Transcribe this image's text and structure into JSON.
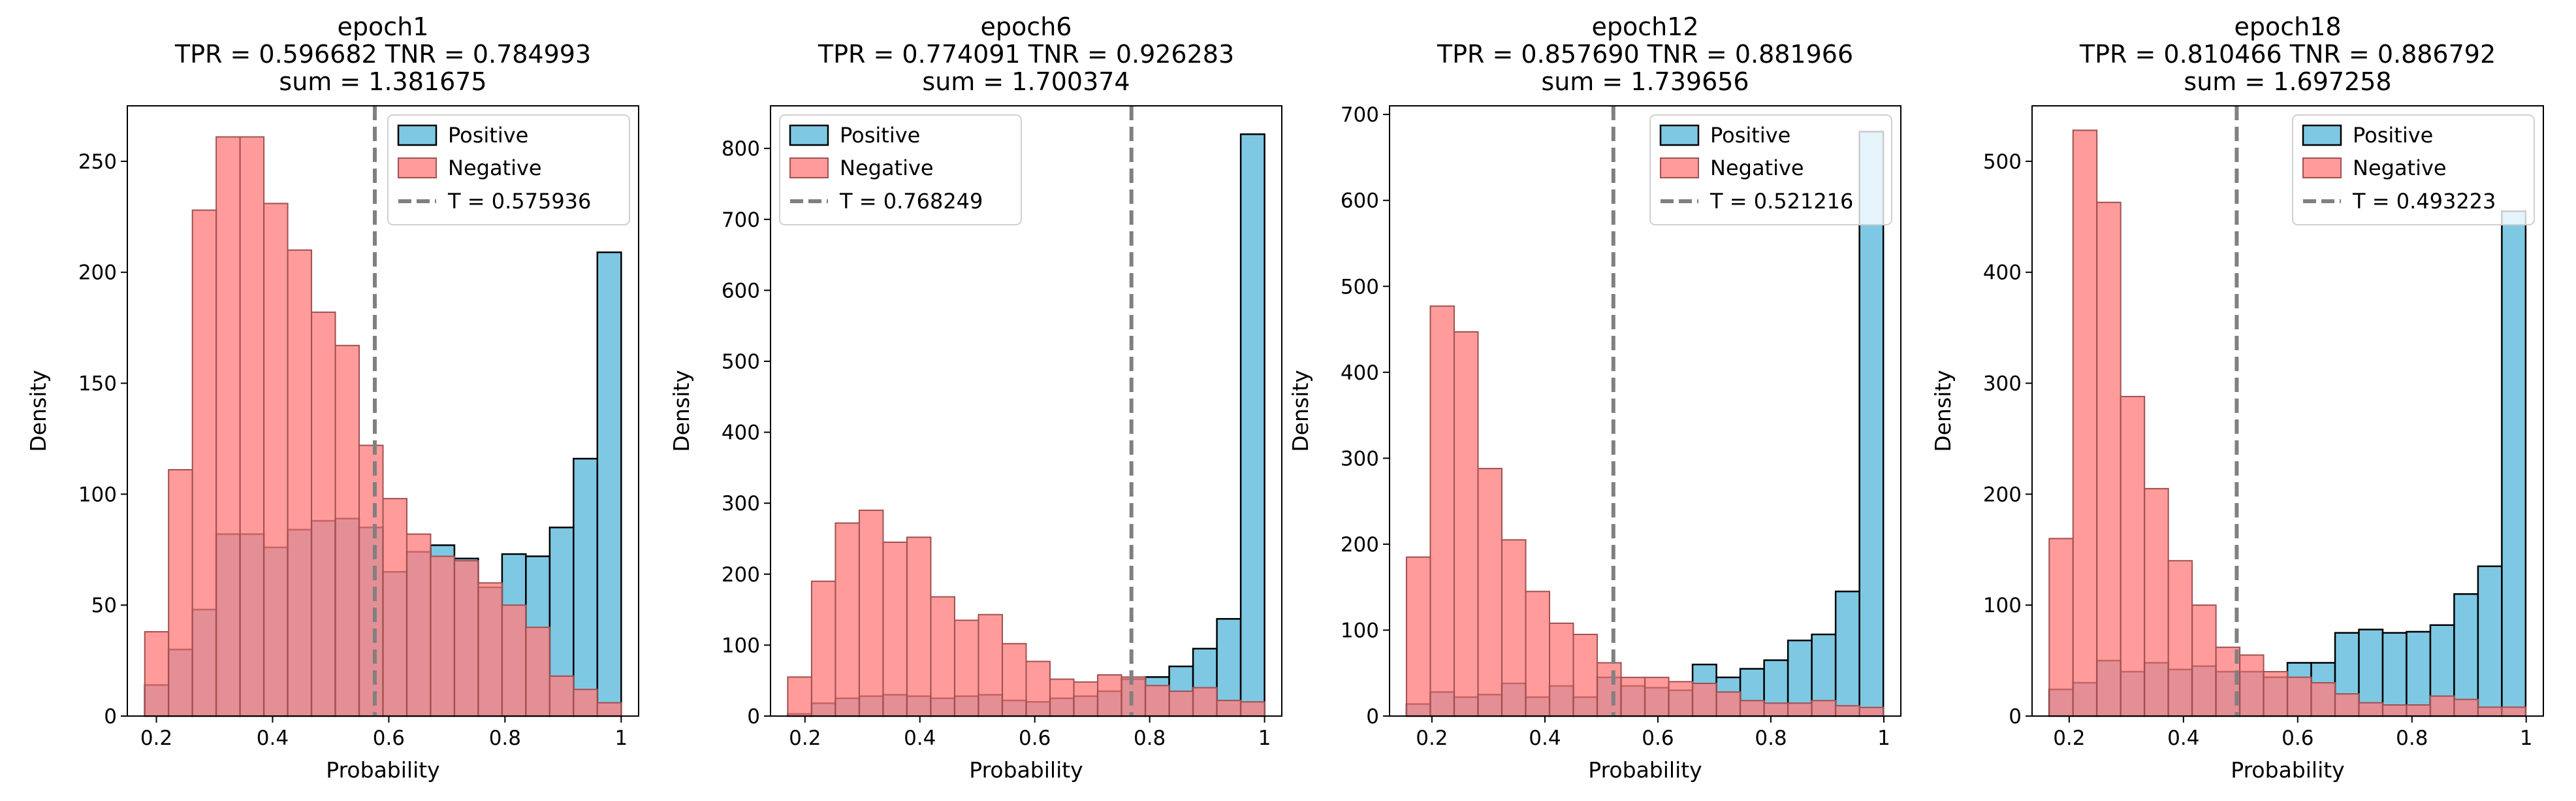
{
  "chart_data": [
    {
      "type": "histogram",
      "title": "epoch1",
      "subtitle_lines": [
        "TPR = 0.596682 TNR = 0.784993",
        "sum = 1.381675"
      ],
      "xlabel": "Probability",
      "ylabel": "Density",
      "xlim": [
        0.15,
        1.03
      ],
      "ylim": [
        0,
        275
      ],
      "xticks": [
        0.2,
        0.4,
        0.6,
        0.8,
        1.0
      ],
      "yticks": [
        0,
        50,
        100,
        150,
        200,
        250
      ],
      "legend_position": "top-right",
      "threshold": 0.575936,
      "legend": {
        "positive": "Positive",
        "negative": "Negative",
        "threshold": "T = 0.575936"
      },
      "bin_start": 0.18,
      "bin_width": 0.041,
      "positive": [
        14,
        30,
        48,
        82,
        82,
        76,
        84,
        88,
        89,
        85,
        65,
        74,
        77,
        71,
        58,
        73,
        72,
        85,
        116,
        209
      ],
      "negative": [
        38,
        111,
        228,
        261,
        261,
        231,
        210,
        182,
        167,
        122,
        98,
        82,
        72,
        70,
        60,
        50,
        40,
        18,
        12,
        6
      ]
    },
    {
      "type": "histogram",
      "title": "epoch6",
      "subtitle_lines": [
        "TPR = 0.774091 TNR = 0.926283",
        "sum = 1.700374"
      ],
      "xlabel": "Probability",
      "ylabel": "Density",
      "xlim": [
        0.14,
        1.03
      ],
      "ylim": [
        0,
        860
      ],
      "xticks": [
        0.2,
        0.4,
        0.6,
        0.8,
        1.0
      ],
      "yticks": [
        0,
        100,
        200,
        300,
        400,
        500,
        600,
        700,
        800
      ],
      "legend_position": "top-left",
      "threshold": 0.768249,
      "legend": {
        "positive": "Positive",
        "negative": "Negative",
        "threshold": "T = 0.768249"
      },
      "bin_start": 0.17,
      "bin_width": 0.0415,
      "positive": [
        3,
        18,
        25,
        28,
        30,
        28,
        25,
        28,
        30,
        22,
        20,
        25,
        28,
        35,
        52,
        55,
        70,
        95,
        137,
        820
      ],
      "negative": [
        55,
        190,
        272,
        290,
        245,
        252,
        168,
        135,
        143,
        102,
        77,
        52,
        48,
        58,
        55,
        43,
        35,
        40,
        22,
        20
      ]
    },
    {
      "type": "histogram",
      "title": "epoch12",
      "subtitle_lines": [
        "TPR = 0.857690 TNR = 0.881966",
        "sum = 1.739656"
      ],
      "xlabel": "Probability",
      "ylabel": "Density",
      "xlim": [
        0.125,
        1.03
      ],
      "ylim": [
        0,
        710
      ],
      "xticks": [
        0.2,
        0.4,
        0.6,
        0.8,
        1.0
      ],
      "yticks": [
        0,
        100,
        200,
        300,
        400,
        500,
        600,
        700
      ],
      "legend_position": "top-right",
      "threshold": 0.521216,
      "legend": {
        "positive": "Positive",
        "negative": "Negative",
        "threshold": "T = 0.521216"
      },
      "bin_start": 0.155,
      "bin_width": 0.0422,
      "positive": [
        14,
        28,
        22,
        25,
        38,
        22,
        35,
        22,
        45,
        35,
        33,
        30,
        60,
        45,
        55,
        65,
        88,
        95,
        145,
        680
      ],
      "negative": [
        185,
        477,
        447,
        288,
        205,
        145,
        108,
        95,
        62,
        45,
        45,
        40,
        38,
        28,
        18,
        15,
        15,
        18,
        12,
        10
      ]
    },
    {
      "type": "histogram",
      "title": "epoch18",
      "subtitle_lines": [
        "TPR = 0.810466 TNR = 0.886792",
        "sum = 1.697258"
      ],
      "xlabel": "Probability",
      "ylabel": "Density",
      "xlim": [
        0.135,
        1.03
      ],
      "ylim": [
        0,
        550
      ],
      "xticks": [
        0.2,
        0.4,
        0.6,
        0.8,
        1.0
      ],
      "yticks": [
        0,
        100,
        200,
        300,
        400,
        500
      ],
      "legend_position": "top-right",
      "threshold": 0.493223,
      "legend": {
        "positive": "Positive",
        "negative": "Negative",
        "threshold": "T = 0.493223"
      },
      "bin_start": 0.165,
      "bin_width": 0.0417,
      "positive": [
        24,
        30,
        50,
        40,
        48,
        42,
        45,
        40,
        40,
        35,
        48,
        48,
        75,
        78,
        75,
        76,
        82,
        110,
        135,
        455
      ],
      "negative": [
        160,
        528,
        463,
        288,
        205,
        140,
        100,
        62,
        55,
        40,
        35,
        30,
        20,
        12,
        10,
        10,
        18,
        15,
        8,
        8
      ]
    }
  ],
  "style": {
    "positive_color": "#7ec8e3",
    "positive_edge": "#000000",
    "negative_color": "#ff7f7f",
    "negative_edge": "#a05050",
    "threshold_color": "#808080"
  }
}
